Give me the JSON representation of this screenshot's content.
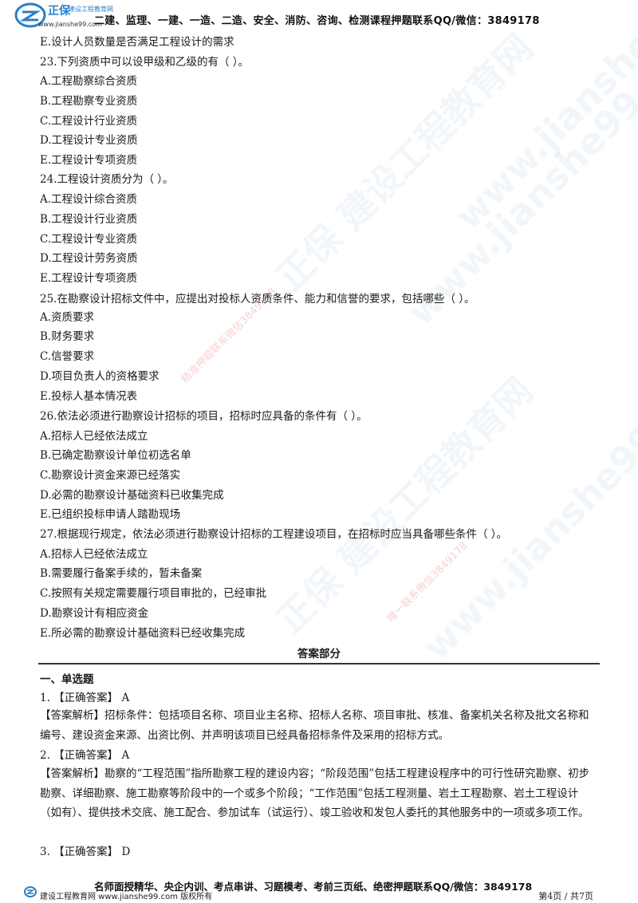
{
  "header": {
    "brand": "正保",
    "brand_sub": "建设工程教育网",
    "url": "www.jianshe99.com",
    "text": "二建、监理、一建、一造、二造、安全、消防、咨询、检测课程押题联系QQ/微信：3849178"
  },
  "lines": [
    "E.设计人员数量是否满足工程设计的需求",
    "23.下列资质中可以设甲级和乙级的有（ ）。",
    "A.工程勘察综合资质",
    "B.工程勘察专业资质",
    "C.工程设计行业资质",
    "D.工程设计专业资质",
    "E.工程设计专项资质",
    "24.工程设计资质分为（ ）。",
    "A.工程设计综合资质",
    "B.工程设计行业资质",
    "C.工程设计专业资质",
    "D.工程设计劳务资质",
    "E.工程设计专项资质",
    "25.在勘察设计招标文件中，应提出对投标人资质条件、能力和信誉的要求，包括哪些（ ）。",
    "A.资质要求",
    "B.财务要求",
    "C.信誉要求",
    "D.项目负责人的资格要求",
    "E.投标人基本情况表",
    "26.依法必须进行勘察设计招标的项目，招标时应具备的条件有（ ）。",
    "A.招标人已经依法成立",
    "B.已确定勘察设计单位初选名单",
    "C.勘察设计资金来源已经落实",
    "D.必需的勘察设计基础资料已收集完成",
    "E.已组织投标申请人踏勘现场",
    "27.根据现行规定，依法必须进行勘察设计招标的工程建设项目，在招标时应当具备哪些条件（ ）。",
    "A.招标人已经依法成立",
    "B.需要履行备案手续的，暂未备案",
    "C.按照有关规定需要履行项目审批的，已经审批",
    "D.勘察设计有相应资金",
    "E.所必需的勘察设计基础资料已经收集完成"
  ],
  "answers": {
    "title": "答案部分",
    "section": "一、单选题",
    "q1": "1. 【正确答案】 A",
    "q1_explain": "【答案解析】招标条件：包括项目名称、项目业主名称、招标人名称、项目审批、核准、备案机关名称及批文名称和编号、建设资金来源、出资比例、并声明该项目已经具备招标条件及采用的招标方式。",
    "q2": "2. 【正确答案】 A",
    "q2_explain": "【答案解析】勘察的“工程范围”指所勘察工程的建设内容；“阶段范围”包括工程建设程序中的可行性研究勘察、初步勘察、详细勘察、施工勘察等阶段中的一个或多个阶段；“工作范围”包括工程测量、岩土工程勘察、岩土工程设计（如有）、提供技术交底、施工配合、参加试车（试运行）、竣工验收和发包人委托的其他服务中的一项或多项工作。",
    "q3": "3. 【正确答案】 D"
  },
  "watermarks": {
    "brand": "正保 建设工程教育网",
    "site": "www.jianshe99.com",
    "red1": "精准押题联系微信3849178",
    "red2": "唯一联系微信3849178"
  },
  "footer": {
    "slogan": "名师面授精华、央企内训、考点串讲、习题模考、考前三页纸、绝密押题联系QQ/微信：3849178",
    "brand": "建设工程教育网 www.jianshe99.com 版权所有",
    "page": "第4页 / 共7页"
  },
  "colors": {
    "brand_blue": "#2a7fc8",
    "rule": "#333333"
  }
}
